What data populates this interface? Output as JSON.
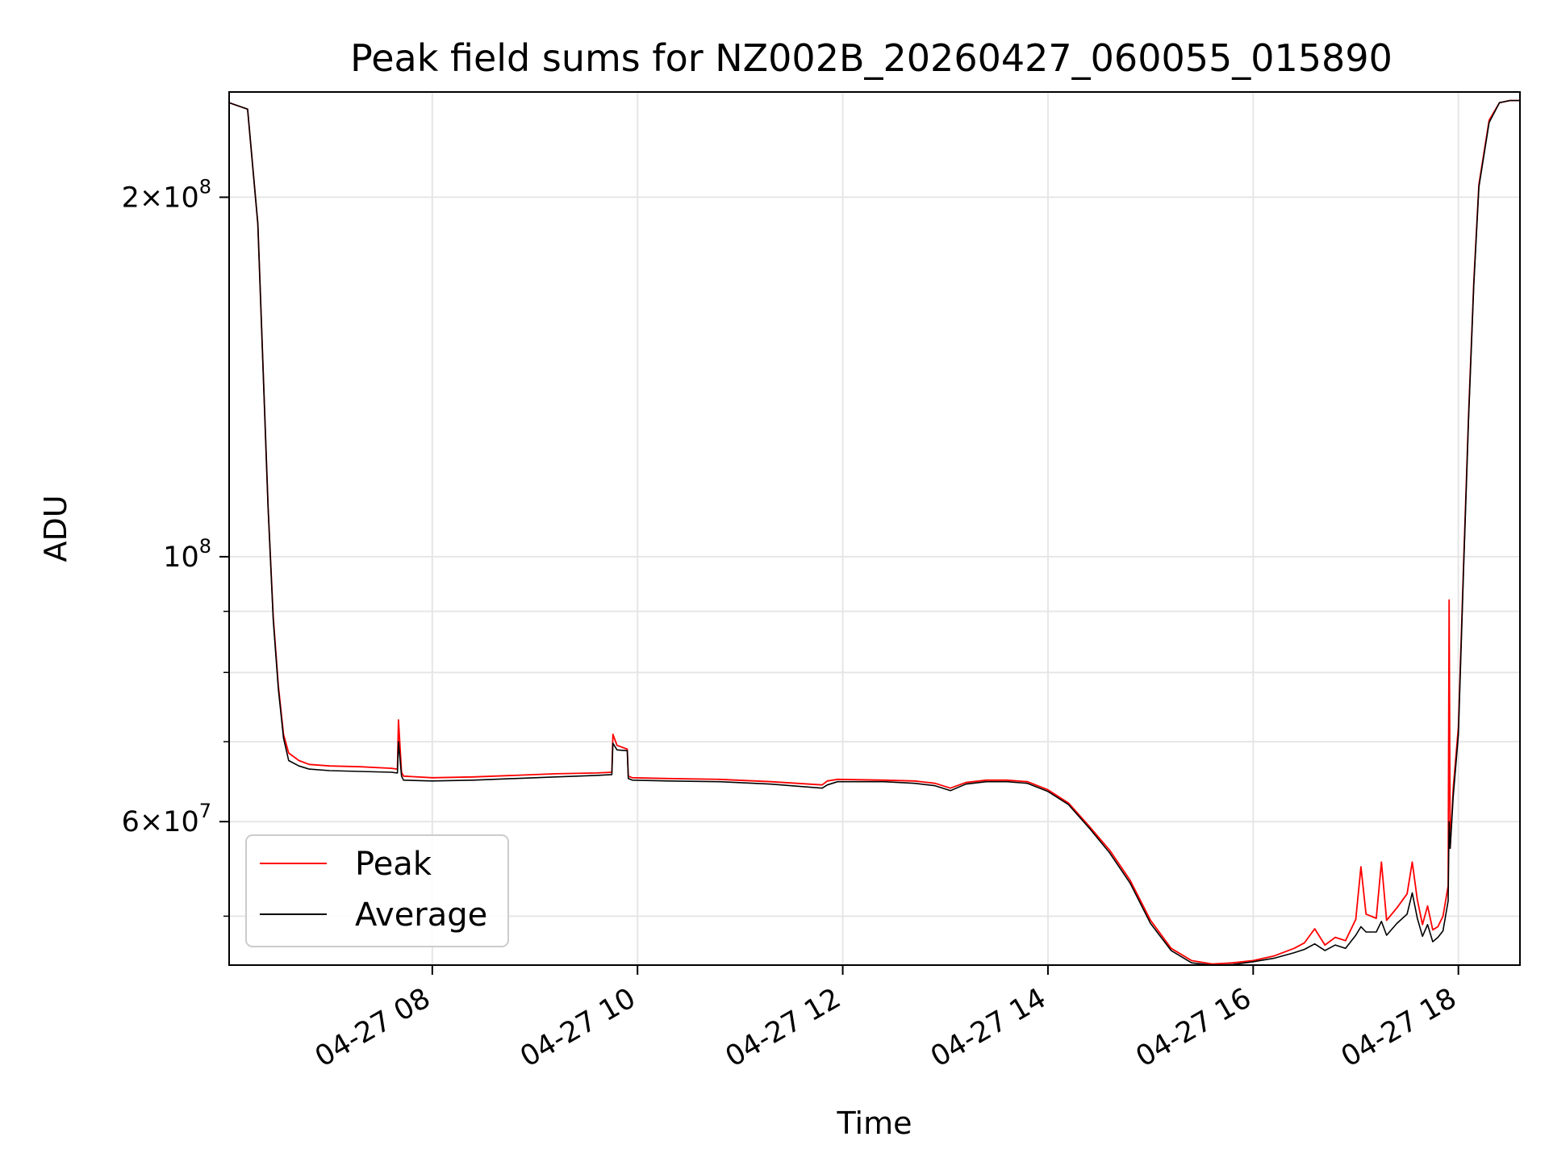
{
  "chart_data": {
    "type": "line",
    "title": "Peak field sums for NZ002B_20260427_060055_015890",
    "xlabel": "Time",
    "ylabel": "ADU",
    "y_scale": "log",
    "xlim_hours": [
      6.02,
      18.6
    ],
    "ylim": [
      45500000,
      245000000
    ],
    "grid": true,
    "legend_location": "lower-left",
    "x_ticks": [
      {
        "value": 8,
        "label": "04-27 08"
      },
      {
        "value": 10,
        "label": "04-27 10"
      },
      {
        "value": 12,
        "label": "04-27 12"
      },
      {
        "value": 14,
        "label": "04-27 14"
      },
      {
        "value": 16,
        "label": "04-27 16"
      },
      {
        "value": 18,
        "label": "04-27 18"
      }
    ],
    "y_major_ticks": [
      {
        "value": 60000000,
        "mantissa": "6",
        "exponent": "7"
      },
      {
        "value": 100000000,
        "mantissa": "",
        "exponent": "8"
      },
      {
        "value": 200000000,
        "mantissa": "2",
        "exponent": "8"
      }
    ],
    "y_minor_ticks": [
      50000000,
      70000000,
      80000000,
      90000000
    ],
    "series": [
      {
        "name": "Peak",
        "color": "#ff0000",
        "x_hours": [
          6.02,
          6.2,
          6.3,
          6.4,
          6.45,
          6.5,
          6.55,
          6.6,
          6.7,
          6.8,
          7.0,
          7.3,
          7.6,
          7.66,
          7.67,
          7.7,
          7.72,
          8.0,
          8.4,
          8.8,
          9.2,
          9.6,
          9.75,
          9.76,
          9.8,
          9.9,
          9.91,
          9.95,
          10.3,
          10.8,
          11.3,
          11.8,
          11.85,
          11.95,
          12.4,
          12.7,
          12.9,
          13.05,
          13.2,
          13.4,
          13.6,
          13.8,
          14.0,
          14.2,
          14.4,
          14.6,
          14.8,
          15.0,
          15.2,
          15.4,
          15.6,
          15.8,
          16.0,
          16.2,
          16.4,
          16.5,
          16.6,
          16.7,
          16.8,
          16.9,
          17.0,
          17.05,
          17.1,
          17.2,
          17.25,
          17.3,
          17.4,
          17.5,
          17.55,
          17.6,
          17.65,
          17.7,
          17.75,
          17.8,
          17.85,
          17.9,
          17.91,
          17.92,
          17.95,
          18.0,
          18.05,
          18.1,
          18.15,
          18.2,
          18.3,
          18.4,
          18.5,
          18.6
        ],
        "y_values": [
          240000000,
          237000000,
          190000000,
          110000000,
          89000000,
          78000000,
          71000000,
          68500000,
          67500000,
          67000000,
          66800000,
          66700000,
          66500000,
          66400000,
          73000000,
          66000000,
          65500000,
          65300000,
          65400000,
          65600000,
          65800000,
          65900000,
          66000000,
          71000000,
          69500000,
          69000000,
          65500000,
          65300000,
          65200000,
          65100000,
          64800000,
          64400000,
          64900000,
          65100000,
          65000000,
          64900000,
          64600000,
          64000000,
          64700000,
          65000000,
          65000000,
          64800000,
          63800000,
          62200000,
          59500000,
          56800000,
          53600000,
          49600000,
          47000000,
          45900000,
          45600000,
          45700000,
          45900000,
          46300000,
          47000000,
          47500000,
          48800000,
          47300000,
          48000000,
          47700000,
          49700000,
          55000000,
          50200000,
          49800000,
          55500000,
          49600000,
          50800000,
          52200000,
          55500000,
          51600000,
          49200000,
          51000000,
          48700000,
          49000000,
          50000000,
          53000000,
          92000000,
          57000000,
          64000000,
          72000000,
          98000000,
          132000000,
          170000000,
          205000000,
          232000000,
          240000000,
          241000000,
          241000000
        ]
      },
      {
        "name": "Average",
        "color": "#000000",
        "x_hours": [
          6.02,
          6.2,
          6.3,
          6.4,
          6.45,
          6.5,
          6.55,
          6.6,
          6.7,
          6.8,
          7.0,
          7.3,
          7.6,
          7.66,
          7.67,
          7.7,
          7.72,
          8.0,
          8.4,
          8.8,
          9.2,
          9.6,
          9.75,
          9.76,
          9.8,
          9.9,
          9.91,
          9.95,
          10.3,
          10.8,
          11.3,
          11.8,
          11.85,
          11.95,
          12.4,
          12.7,
          12.9,
          13.05,
          13.2,
          13.4,
          13.6,
          13.8,
          14.0,
          14.2,
          14.4,
          14.6,
          14.8,
          15.0,
          15.2,
          15.4,
          15.6,
          15.8,
          16.0,
          16.2,
          16.4,
          16.5,
          16.6,
          16.7,
          16.8,
          16.9,
          17.0,
          17.05,
          17.1,
          17.2,
          17.25,
          17.3,
          17.4,
          17.5,
          17.55,
          17.6,
          17.65,
          17.7,
          17.75,
          17.8,
          17.85,
          17.9,
          17.91,
          17.92,
          17.95,
          18.0,
          18.05,
          18.1,
          18.15,
          18.2,
          18.3,
          18.4,
          18.5,
          18.6
        ],
        "y_values": [
          240000000,
          237000000,
          190000000,
          110000000,
          88500000,
          77500000,
          70500000,
          67500000,
          66800000,
          66400000,
          66200000,
          66100000,
          66000000,
          65900000,
          70000000,
          65500000,
          65000000,
          64900000,
          65000000,
          65200000,
          65400000,
          65600000,
          65700000,
          69800000,
          68900000,
          68800000,
          65200000,
          65000000,
          64900000,
          64800000,
          64500000,
          64000000,
          64400000,
          64800000,
          64800000,
          64600000,
          64300000,
          63700000,
          64500000,
          64800000,
          64800000,
          64600000,
          63600000,
          62000000,
          59300000,
          56500000,
          53300000,
          49300000,
          46800000,
          45700000,
          45500000,
          45550000,
          45800000,
          46100000,
          46600000,
          46900000,
          47400000,
          46800000,
          47300000,
          47000000,
          48200000,
          49000000,
          48500000,
          48500000,
          49500000,
          48200000,
          49300000,
          50200000,
          52300000,
          49800000,
          48100000,
          49200000,
          47600000,
          48000000,
          48600000,
          51500000,
          60000000,
          57000000,
          63000000,
          71000000,
          97000000,
          131000000,
          169000000,
          204000000,
          231000000,
          240000000,
          241000000,
          241000000
        ]
      }
    ]
  }
}
